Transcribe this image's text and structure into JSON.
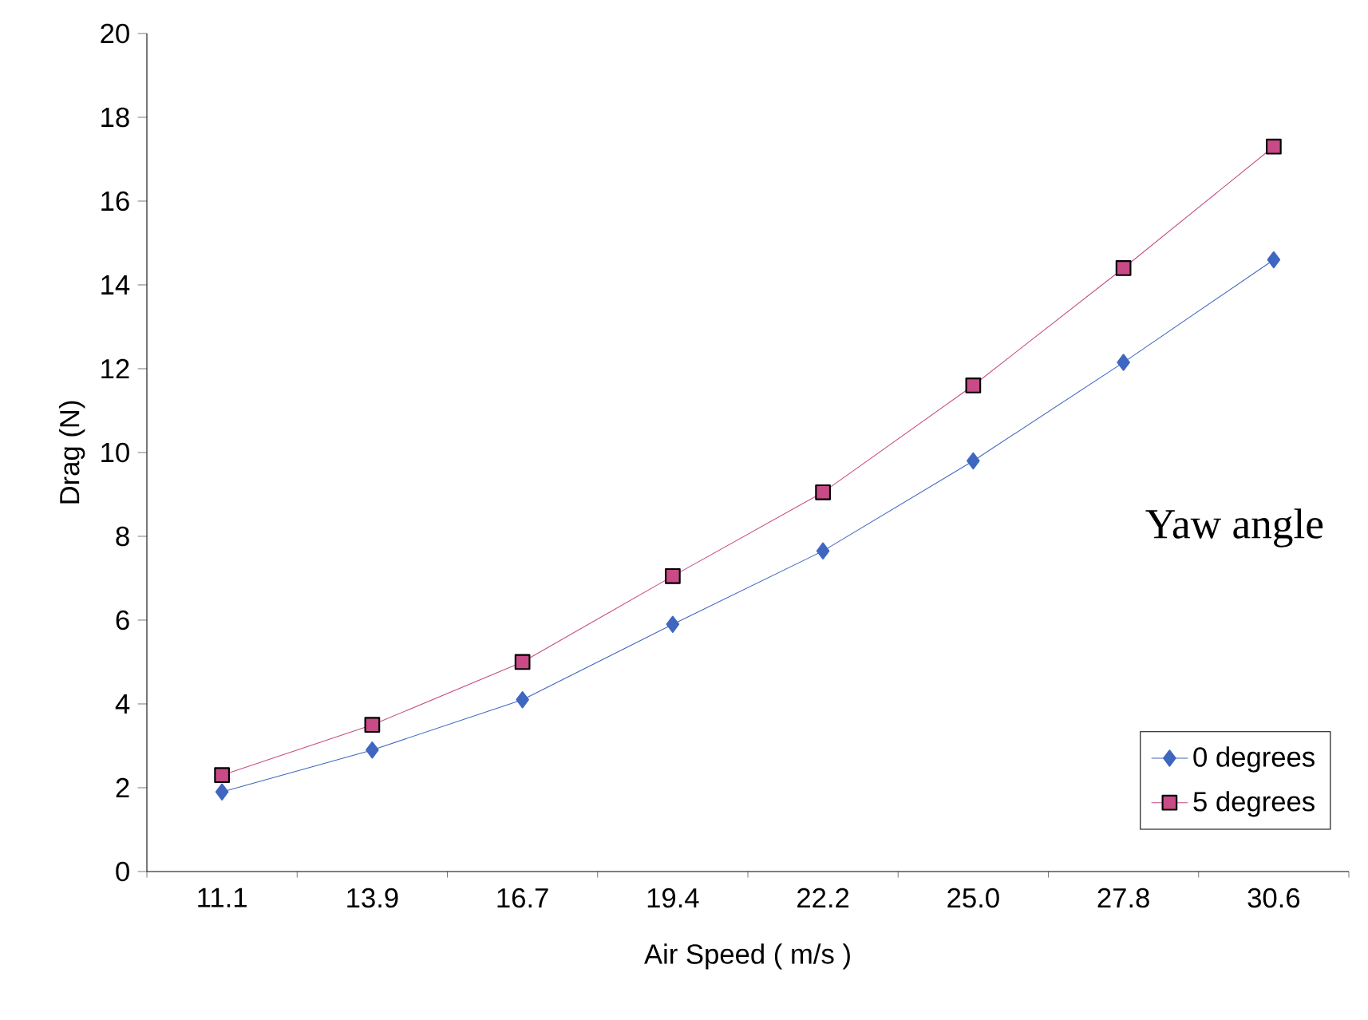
{
  "chart_data": {
    "type": "line",
    "xlabel": "Air Speed ( m/s )",
    "ylabel": "Drag (N)",
    "legend_title": "Yaw angle",
    "legend": "bottom right",
    "grid": false,
    "categories": [
      "11.1",
      "13.9",
      "16.7",
      "19.4",
      "22.2",
      "25.0",
      "27.8",
      "30.6"
    ],
    "ylim": [
      0,
      20
    ],
    "yticks": [
      0,
      2,
      4,
      6,
      8,
      10,
      12,
      14,
      16,
      18,
      20
    ],
    "series": [
      {
        "name": "0 degrees",
        "color": "#3f67c0",
        "marker": "diamond",
        "values": [
          1.9,
          2.9,
          4.1,
          5.9,
          7.65,
          9.8,
          12.15,
          14.6
        ]
      },
      {
        "name": "5 degrees",
        "color": "#c84a86",
        "marker": "square",
        "values": [
          2.3,
          3.5,
          5.0,
          7.05,
          9.05,
          11.6,
          14.4,
          17.3
        ]
      }
    ]
  }
}
